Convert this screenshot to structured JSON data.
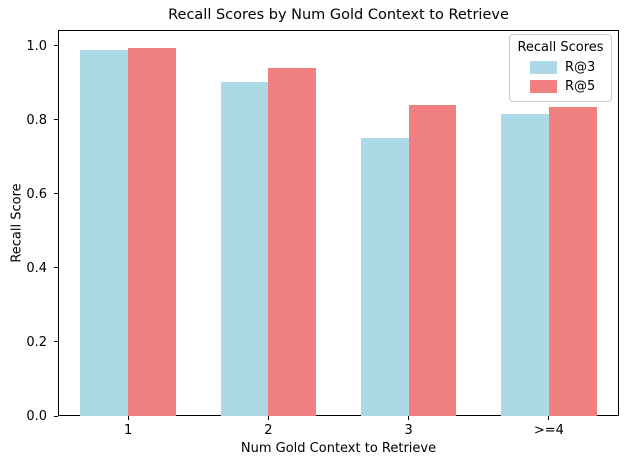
{
  "chart_data": {
    "type": "bar",
    "title": "Recall Scores by Num Gold Context to Retrieve",
    "xlabel": "Num Gold Context to Retrieve",
    "ylabel": "Recall Score",
    "categories": [
      "1",
      "2",
      "3",
      ">=4"
    ],
    "series": [
      {
        "name": "R@3",
        "color": "#ADD8E6",
        "values": [
          0.988,
          0.902,
          0.751,
          0.817
        ]
      },
      {
        "name": "R@5",
        "color": "#F08080",
        "values": [
          0.995,
          0.941,
          0.84,
          0.835
        ]
      }
    ],
    "legend_title": "Recall Scores",
    "legend_position": "upper right",
    "ylim": [
      0,
      1.043
    ],
    "yticks": [
      "0.0",
      "0.2",
      "0.4",
      "0.6",
      "0.8",
      "1.0"
    ],
    "grid": false,
    "bar_width_units": 0.34,
    "background_color": "#ffffff",
    "spine_color": "#000000"
  }
}
